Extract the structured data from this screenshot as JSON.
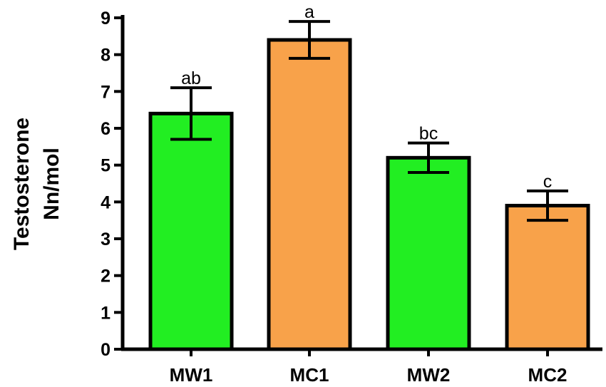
{
  "chart_data": {
    "type": "bar",
    "title": "",
    "xlabel": "",
    "ylabel_lines": [
      "Testosterone",
      "Nn/mol"
    ],
    "ylim": [
      0,
      9
    ],
    "yticks": [
      0,
      1,
      2,
      3,
      4,
      5,
      6,
      7,
      8,
      9
    ],
    "categories": [
      "MW1",
      "MC1",
      "MW2",
      "MC2"
    ],
    "values": [
      6.4,
      8.4,
      5.2,
      3.9
    ],
    "errors": [
      0.7,
      0.5,
      0.4,
      0.4
    ],
    "significance_labels": [
      "ab",
      "a",
      "bc",
      "c"
    ],
    "bar_colors": [
      "#22ee22",
      "#f8a24a",
      "#22ee22",
      "#f8a24a"
    ],
    "grid": false,
    "legend": "none"
  }
}
